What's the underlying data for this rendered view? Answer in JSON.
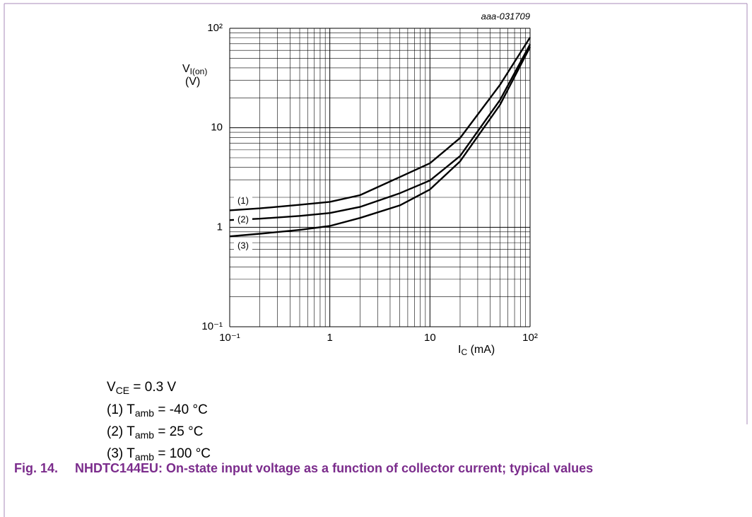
{
  "chart_data": {
    "type": "line",
    "annotation": "aaa-031709",
    "xscale": "log",
    "yscale": "log",
    "grid": true,
    "minor_grid": true,
    "xlim": [
      0.1,
      100
    ],
    "ylim": [
      0.1,
      100
    ],
    "xticks": [
      {
        "value": 0.1,
        "label": "10⁻¹"
      },
      1,
      10,
      {
        "value": 100,
        "label": "10²"
      }
    ],
    "yticks": [
      {
        "value": 0.1,
        "label": "10⁻¹"
      },
      1,
      10,
      {
        "value": 100,
        "label": "10²"
      }
    ],
    "ylabel": {
      "symbol": "V",
      "sub": "I(on)",
      "unit": "(V)"
    },
    "xlabel": {
      "symbol": "I",
      "sub": "C",
      "unit": " (mA)"
    },
    "x": [
      0.1,
      0.2,
      0.5,
      1,
      2,
      5,
      10,
      20,
      50,
      100
    ],
    "series": [
      {
        "name": "(1)",
        "color": "#000000",
        "values": [
          1.48,
          1.55,
          1.68,
          1.8,
          2.1,
          3.2,
          4.4,
          7.9,
          27,
          81
        ]
      },
      {
        "name": "(2)",
        "color": "#000000",
        "values": [
          1.18,
          1.22,
          1.3,
          1.39,
          1.6,
          2.2,
          2.95,
          5.2,
          19,
          69
        ]
      },
      {
        "name": "(3)",
        "color": "#000000",
        "values": [
          0.81,
          0.86,
          0.94,
          1.03,
          1.24,
          1.66,
          2.4,
          4.6,
          17,
          65
        ]
      }
    ],
    "condition": {
      "symbol": "V",
      "sub": "CE",
      "text": " = 0.3 V"
    },
    "legend": [
      {
        "symbol": "T",
        "sub": "amb",
        "text": " = -40 °C"
      },
      {
        "symbol": "T",
        "sub": "amb",
        "text": " = 25 °C"
      },
      {
        "symbol": "T",
        "sub": "amb",
        "text": " = 100 °C"
      }
    ],
    "caption_number": "Fig. 14.",
    "caption": "NHDTC144EU: On-state input voltage as a function of collector current; typical values"
  }
}
